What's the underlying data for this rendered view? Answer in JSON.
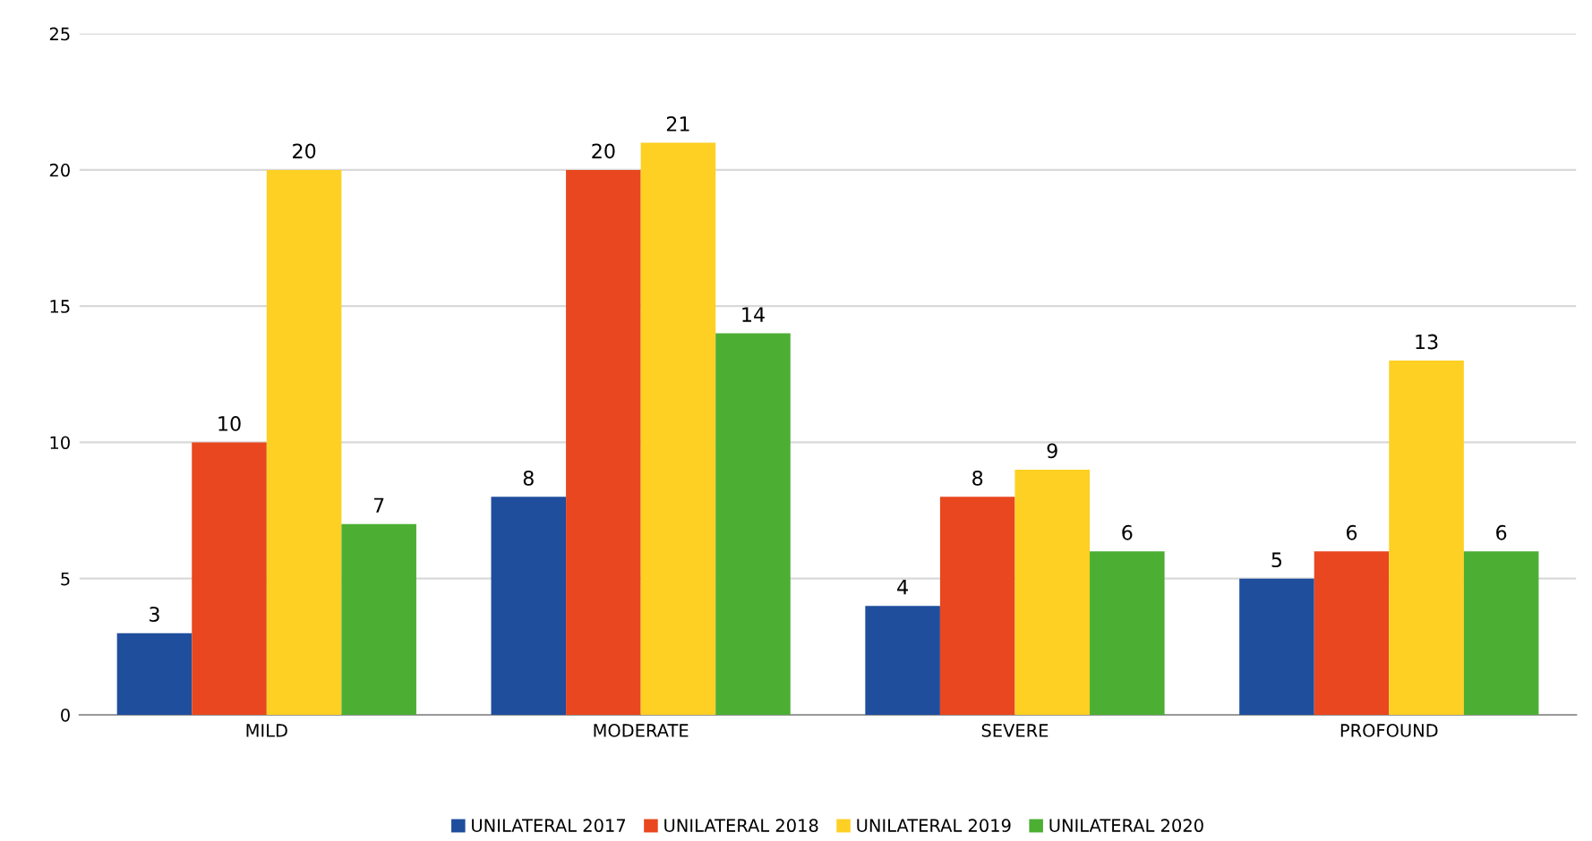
{
  "chart_data": {
    "type": "bar",
    "categories": [
      "MILD",
      "MODERATE",
      "SEVERE",
      "PROFOUND"
    ],
    "series": [
      {
        "name": "UNILATERAL 2017",
        "color": "#1f4e9c",
        "values": [
          3,
          8,
          4,
          5
        ]
      },
      {
        "name": "UNILATERAL 2018",
        "color": "#e8471f",
        "values": [
          10,
          20,
          8,
          6
        ]
      },
      {
        "name": "UNILATERAL 2019",
        "color": "#fdd023",
        "values": [
          20,
          21,
          9,
          13
        ]
      },
      {
        "name": "UNILATERAL 2020",
        "color": "#4caf34",
        "values": [
          7,
          14,
          6,
          6
        ]
      }
    ],
    "ylim": [
      0,
      25
    ],
    "yticks": [
      0,
      5,
      10,
      15,
      20,
      25
    ],
    "grid": "y",
    "legend": "bottom",
    "data_labels": true
  }
}
